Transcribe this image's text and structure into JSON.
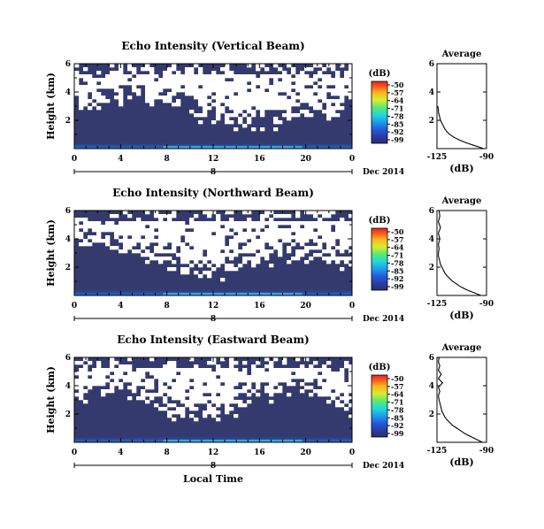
{
  "chart_data": [
    {
      "type": "heatmap",
      "title": "Echo Intensity (Vertical Beam)",
      "beam": "vertical",
      "ylabel": "Height (km)",
      "y_tick_labels": [
        "2",
        "4",
        "6"
      ],
      "ylim": [
        0,
        6
      ],
      "x_tick_labels": [
        "0",
        "4",
        "8",
        "12",
        "16",
        "20",
        "0"
      ],
      "xlim": [
        0,
        24
      ],
      "date_marker": "8",
      "date_label": "Dec 2014",
      "colorbar": {
        "unit": "(dB)",
        "ticks": [
          "-50",
          "-57",
          "-64",
          "-71",
          "-78",
          "-85",
          "-92",
          "-99"
        ]
      },
      "profile": {
        "title": "Average",
        "xlabel": "(dB)",
        "x_tick_labels": [
          "-125",
          "-90"
        ],
        "y_tick_labels": [
          "2",
          "4",
          "6"
        ],
        "xlim": [
          -125,
          -90
        ],
        "ylim": [
          0,
          6
        ],
        "heights": [
          0,
          0.2,
          0.4,
          0.6,
          0.8,
          1.0,
          1.2,
          1.4,
          1.6,
          1.8,
          2.0,
          2.2,
          2.4,
          2.6,
          2.8,
          3.0
        ],
        "values": [
          -92,
          -98,
          -104,
          -109,
          -113,
          -116,
          -118,
          -119.5,
          -120.5,
          -121.5,
          -122.5,
          -123,
          -123.5,
          -124,
          -124,
          -124.5
        ]
      }
    },
    {
      "type": "heatmap",
      "title": "Echo Intensity (Northward Beam)",
      "beam": "northward",
      "ylabel": "Height (km)",
      "y_tick_labels": [
        "2",
        "4",
        "6"
      ],
      "ylim": [
        0,
        6
      ],
      "x_tick_labels": [
        "0",
        "4",
        "8",
        "12",
        "16",
        "20",
        "0"
      ],
      "xlim": [
        0,
        24
      ],
      "date_marker": "8",
      "date_label": "Dec 2014",
      "colorbar": {
        "unit": "(dB)",
        "ticks": [
          "-50",
          "-57",
          "-64",
          "-71",
          "-78",
          "-85",
          "-92",
          "-99"
        ]
      },
      "profile": {
        "title": "Average",
        "xlabel": "(dB)",
        "x_tick_labels": [
          "-125",
          "-90"
        ],
        "y_tick_labels": [
          "2",
          "4",
          "6"
        ],
        "xlim": [
          -125,
          -90
        ],
        "ylim": [
          0,
          6
        ],
        "heights": [
          0,
          0.2,
          0.4,
          0.6,
          0.8,
          1.0,
          1.2,
          1.4,
          1.6,
          1.8,
          2.0,
          2.2,
          2.4,
          2.6,
          2.8,
          3.0,
          3.3,
          3.6,
          4.0,
          4.4,
          4.8,
          5.2,
          5.6,
          6.0
        ],
        "values": [
          -94,
          -99,
          -104,
          -108,
          -111,
          -114,
          -116,
          -118,
          -119.5,
          -120.5,
          -121.5,
          -122.5,
          -123,
          -123.5,
          -124,
          -124,
          -123.5,
          -124,
          -123,
          -124,
          -122.5,
          -124,
          -123,
          -123.5
        ]
      }
    },
    {
      "type": "heatmap",
      "title": "Echo Intensity (Eastward Beam)",
      "beam": "eastward",
      "ylabel": "Height (km)",
      "y_tick_labels": [
        "2",
        "4",
        "6"
      ],
      "ylim": [
        0,
        6
      ],
      "x_tick_labels": [
        "0",
        "4",
        "8",
        "12",
        "16",
        "20",
        "0"
      ],
      "xlim": [
        0,
        24
      ],
      "date_marker": "8",
      "date_label": "Dec 2014",
      "xlabel": "Local Time",
      "colorbar": {
        "unit": "(dB)",
        "ticks": [
          "-50",
          "-57",
          "-64",
          "-71",
          "-78",
          "-85",
          "-92",
          "-99"
        ]
      },
      "profile": {
        "title": "Average",
        "xlabel": "(dB)",
        "x_tick_labels": [
          "-125",
          "-90"
        ],
        "y_tick_labels": [
          "2",
          "4",
          "6"
        ],
        "xlim": [
          -125,
          -90
        ],
        "ylim": [
          0,
          6
        ],
        "heights": [
          0,
          0.2,
          0.4,
          0.6,
          0.8,
          1.0,
          1.2,
          1.4,
          1.6,
          1.8,
          2.0,
          2.2,
          2.4,
          2.6,
          2.8,
          3.0,
          3.3,
          3.6,
          3.9,
          4.2,
          4.5,
          4.8,
          5.1,
          5.4,
          5.7,
          6.0
        ],
        "values": [
          -93,
          -97,
          -101,
          -105,
          -108,
          -111,
          -114,
          -116,
          -118,
          -119.5,
          -120.5,
          -121.5,
          -122,
          -122.5,
          -123,
          -123.5,
          -124,
          -123,
          -124,
          -121,
          -124,
          -122,
          -124,
          -123,
          -124,
          -123.5
        ]
      }
    }
  ]
}
